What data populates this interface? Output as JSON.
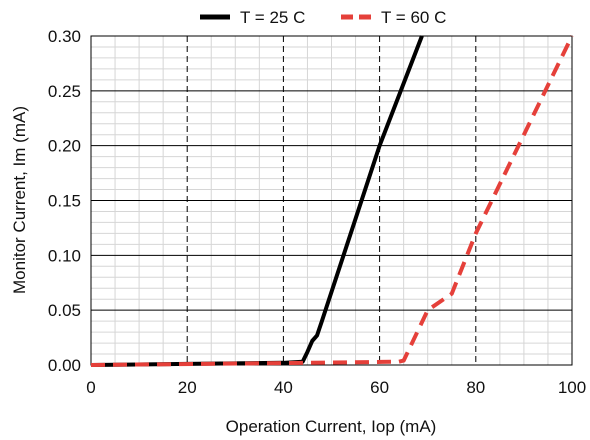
{
  "chart_data": {
    "type": "line",
    "title": "",
    "xlabel": "Operation Current, Iop (mA)",
    "ylabel": "Monitor Current, Im (mA)",
    "xlim": [
      0,
      100
    ],
    "ylim": [
      0,
      0.3
    ],
    "x_ticks": [
      "0",
      "20",
      "40",
      "60",
      "80",
      "100"
    ],
    "y_ticks": [
      "0.00",
      "0.05",
      "0.10",
      "0.15",
      "0.20",
      "0.25",
      "0.30"
    ],
    "grid": true,
    "legend_position": "top",
    "series": [
      {
        "name": "T = 25 C",
        "color": "#000000",
        "style": "solid",
        "x": [
          0,
          20,
          40,
          44,
          45,
          46,
          47,
          48,
          60,
          68.8
        ],
        "y": [
          0,
          0.001,
          0.002,
          0.003,
          0.012,
          0.022,
          0.027,
          0.04,
          0.2,
          0.3
        ]
      },
      {
        "name": "T = 60 C",
        "color": "#e5403a",
        "style": "dashed",
        "x": [
          0,
          45,
          64,
          65,
          70,
          75,
          80,
          100
        ],
        "y": [
          0,
          0.002,
          0.003,
          0.004,
          0.05,
          0.065,
          0.12,
          0.3
        ]
      }
    ]
  }
}
